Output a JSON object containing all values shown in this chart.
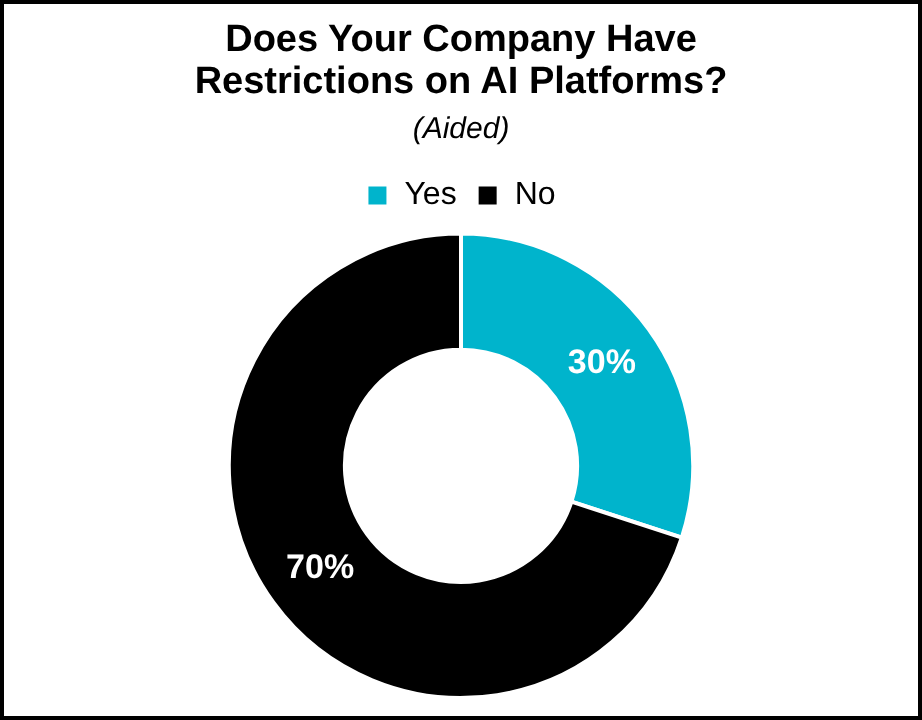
{
  "chart_data": {
    "type": "donut",
    "title": "Does Your Company Have Restrictions on AI Platforms?",
    "subtitle": "(Aided)",
    "categories": [
      "Yes",
      "No"
    ],
    "values": [
      30,
      70
    ],
    "colors": [
      "#00b4cc",
      "#000000"
    ],
    "value_labels": [
      "30%",
      "70%"
    ],
    "legend": "top"
  }
}
